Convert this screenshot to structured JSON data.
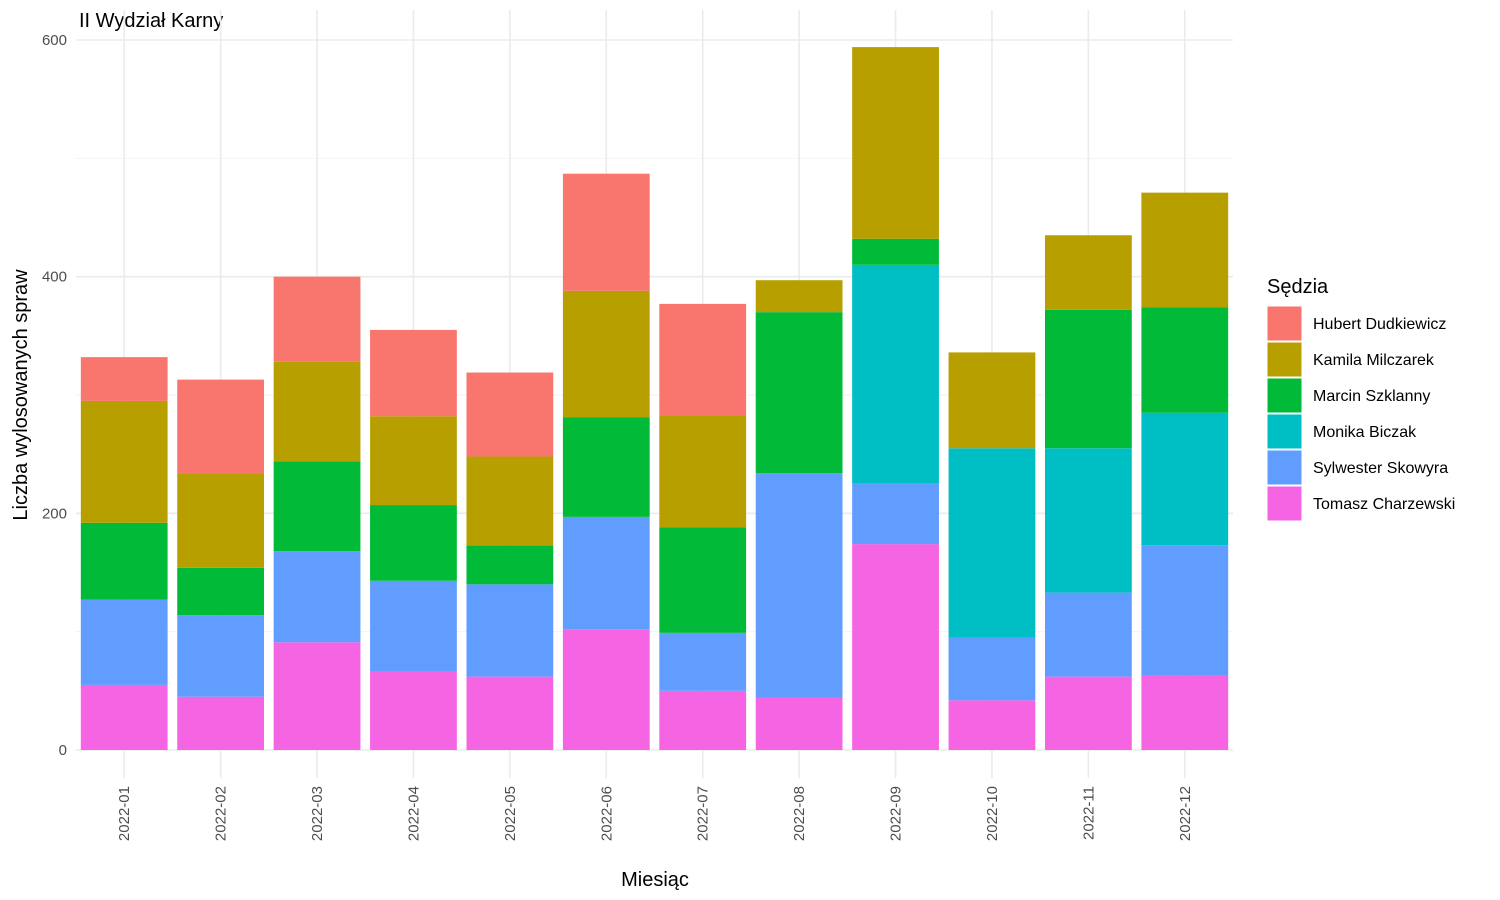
{
  "chart_data": {
    "type": "bar",
    "stacked": true,
    "title": "II Wydział Karny",
    "xlabel": "Miesiąc",
    "ylabel": "Liczba wylosowanych spraw",
    "ylim": [
      0,
      610
    ],
    "yticks": [
      0,
      200,
      400,
      600
    ],
    "grid": true,
    "legend_title": "Sędzia",
    "legend_position": "right",
    "categories": [
      "2022-01",
      "2022-02",
      "2022-03",
      "2022-04",
      "2022-05",
      "2022-06",
      "2022-07",
      "2022-08",
      "2022-09",
      "2022-10",
      "2022-11",
      "2022-12"
    ],
    "series": [
      {
        "name": "Hubert Dudkiewicz",
        "color": "#F8766D",
        "values": [
          37,
          79,
          72,
          73,
          71,
          99,
          94,
          0,
          0,
          0,
          0,
          0
        ]
      },
      {
        "name": "Kamila Milczarek",
        "color": "#B79F00",
        "values": [
          103,
          80,
          84,
          75,
          75,
          107,
          95,
          27,
          162,
          81,
          63,
          97
        ]
      },
      {
        "name": "Marcin Szklanny",
        "color": "#00BA38",
        "values": [
          65,
          40,
          76,
          64,
          33,
          84,
          89,
          136,
          22,
          0,
          117,
          89
        ]
      },
      {
        "name": "Monika Biczak",
        "color": "#00BFC4",
        "values": [
          0,
          0,
          0,
          0,
          0,
          0,
          0,
          0,
          185,
          160,
          122,
          112
        ]
      },
      {
        "name": "Sylwester Skowyra",
        "color": "#619CFF",
        "values": [
          72,
          69,
          77,
          77,
          78,
          95,
          49,
          190,
          51,
          53,
          71,
          110
        ]
      },
      {
        "name": "Tomasz Charzewski",
        "color": "#F564E3",
        "values": [
          55,
          45,
          91,
          66,
          62,
          102,
          50,
          44,
          174,
          42,
          62,
          63
        ]
      }
    ]
  }
}
